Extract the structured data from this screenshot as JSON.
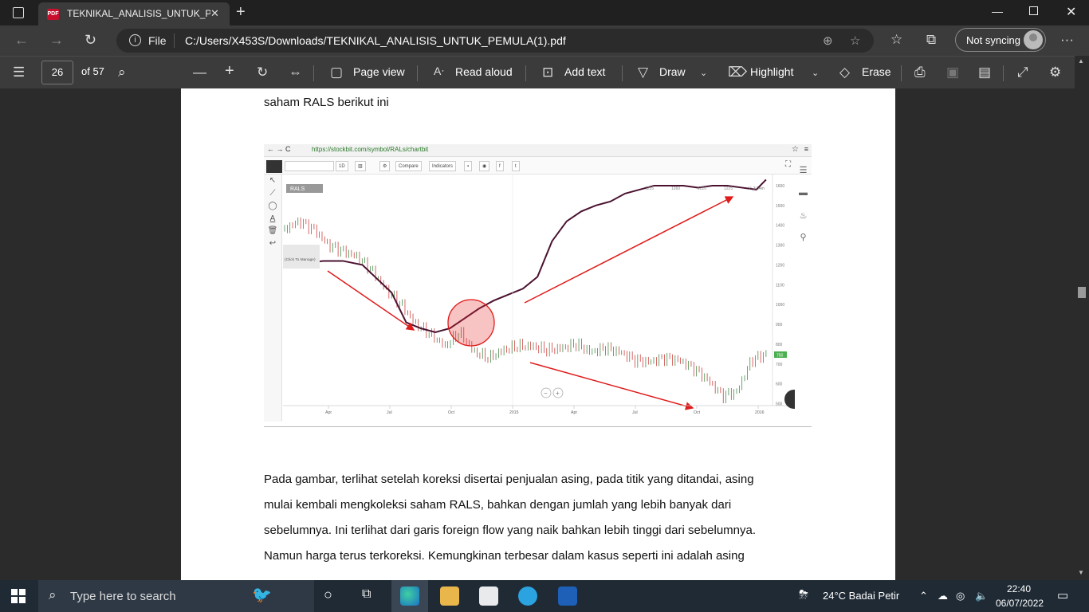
{
  "browser": {
    "tab_title": "TEKNIKAL_ANALISIS_UNTUK_PEMULA(1).pdf",
    "tab_display": "TEKNIKAL_ANALISIS_UNTUK_PEM",
    "file_label": "File",
    "address": "C:/Users/X453S/Downloads/TEKNIKAL_ANALISIS_UNTUK_PEMULA(1).pdf",
    "sync_label": "Not syncing"
  },
  "pdf_toolbar": {
    "page_number": "26",
    "page_total": "of 57",
    "page_view": "Page view",
    "read_aloud": "Read aloud",
    "add_text": "Add text",
    "draw": "Draw",
    "highlight": "Highlight",
    "erase": "Erase"
  },
  "document": {
    "intro_line": "saham RALS berikut ini",
    "paragraph_lines": [
      "Pada gambar, terlihat setelah koreksi disertai penjualan asing, pada titik yang ditandai, asing",
      "mulai kembali mengkoleksi saham RALS, bahkan dengan jumlah yang lebih banyak dari",
      "sebelumnya. Ini terlihat dari garis foreign flow yang naik bahkan lebih tinggi dari sebelumnya.",
      "Namun harga terus terkoreksi. Kemungkinan terbesar dalam kasus seperti ini adalah asing"
    ]
  },
  "embedded_chart": {
    "url": "https://stockbit.com/symbol/RALs/chartbit",
    "toolbar": {
      "interval": "1D",
      "compare": "Compare",
      "indicators": "Indicators"
    },
    "symbol": "RALS",
    "manage_label": "(Click To Manage)",
    "volume_label": "V: 3.54m",
    "ohlc_labels": [
      "1235",
      "1260",
      "1220",
      "1225"
    ],
    "price_tag": "750",
    "y_ticks": [
      "1600",
      "1500",
      "1400",
      "1300",
      "1200",
      "1100",
      "1000",
      "900",
      "800",
      "700",
      "600",
      "500"
    ],
    "x_ticks": [
      "Apr",
      "Jul",
      "Oct",
      "2015",
      "Apr",
      "Jul",
      "Oct",
      "2016"
    ]
  },
  "chart_data": {
    "type": "line",
    "title": "RALS",
    "ylim": [
      490,
      1640
    ],
    "series": [
      {
        "name": "",
        "x": [
          0,
          3,
          6,
          9,
          12,
          15,
          18,
          21,
          24,
          27,
          30,
          33,
          36,
          39,
          42,
          45,
          48,
          51,
          54,
          57,
          60,
          63,
          66,
          69,
          72,
          75,
          78,
          81,
          84,
          87,
          90,
          93,
          96,
          99
        ],
        "values": [
          1380,
          1420,
          1380,
          1300,
          1270,
          1240,
          1170,
          1070,
          1000,
          900,
          850,
          790,
          860,
          760,
          730,
          770,
          790,
          790,
          770,
          780,
          800,
          760,
          780,
          760,
          720,
          710,
          730,
          720,
          680,
          620,
          540,
          560,
          720,
          750
        ]
      },
      {
        "name": "",
        "x": [
          0,
          4,
          8,
          12,
          16,
          19,
          22,
          25,
          28,
          31,
          34,
          37,
          40,
          43,
          46,
          49,
          52,
          55,
          58,
          61,
          64,
          67,
          70,
          73,
          76,
          79,
          82,
          85,
          88,
          91,
          94,
          97,
          99
        ],
        "values": [
          1190,
          1210,
          1220,
          1220,
          1200,
          1130,
          1060,
          910,
          880,
          860,
          880,
          930,
          980,
          1020,
          1050,
          1080,
          1140,
          1320,
          1420,
          1470,
          1500,
          1520,
          1560,
          1580,
          1600,
          1600,
          1600,
          1590,
          1600,
          1600,
          1590,
          1580,
          1630
        ]
      }
    ]
  },
  "taskbar": {
    "search_placeholder": "Type here to search",
    "weather": "24°C  Badai Petir",
    "time": "22:40",
    "date": "06/07/2022"
  },
  "colors": {
    "foreign_flow": "#4a1230",
    "price_up": "#2e7d32",
    "price_down": "#c62828",
    "annotation": "#e01b1b"
  }
}
